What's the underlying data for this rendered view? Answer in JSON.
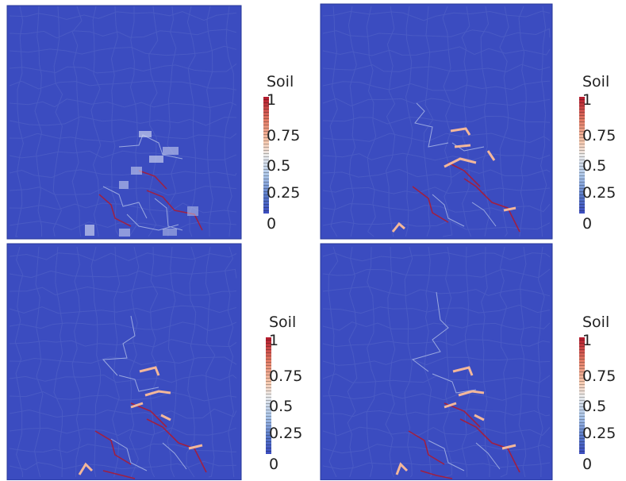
{
  "colorbar": {
    "title": "Soil",
    "tick_labels": [
      "1",
      "0.75",
      "0.5",
      "0.25",
      "0"
    ],
    "colors": {
      "high": "#b2182b",
      "mid": "#ececec",
      "low": "#3b4cc0"
    }
  },
  "panels": [
    {
      "id": "panel-1",
      "colorbar_title": "Soil",
      "ticks": [
        "1",
        "0.75",
        "0.5",
        "0.25",
        "0"
      ]
    },
    {
      "id": "panel-2",
      "colorbar_title": "Soil",
      "ticks": [
        "1",
        "0.75",
        "0.5",
        "0.25",
        "0"
      ]
    },
    {
      "id": "panel-3",
      "colorbar_title": "Soil",
      "ticks": [
        "1",
        "0.75",
        "0.5",
        "0.25",
        "0"
      ]
    },
    {
      "id": "panel-4",
      "colorbar_title": "Soil",
      "ticks": [
        "1",
        "0.75",
        "0.5",
        "0.25",
        "0"
      ]
    }
  ],
  "field": {
    "background": "#3b4cc0",
    "network_color": "#5566c8"
  }
}
